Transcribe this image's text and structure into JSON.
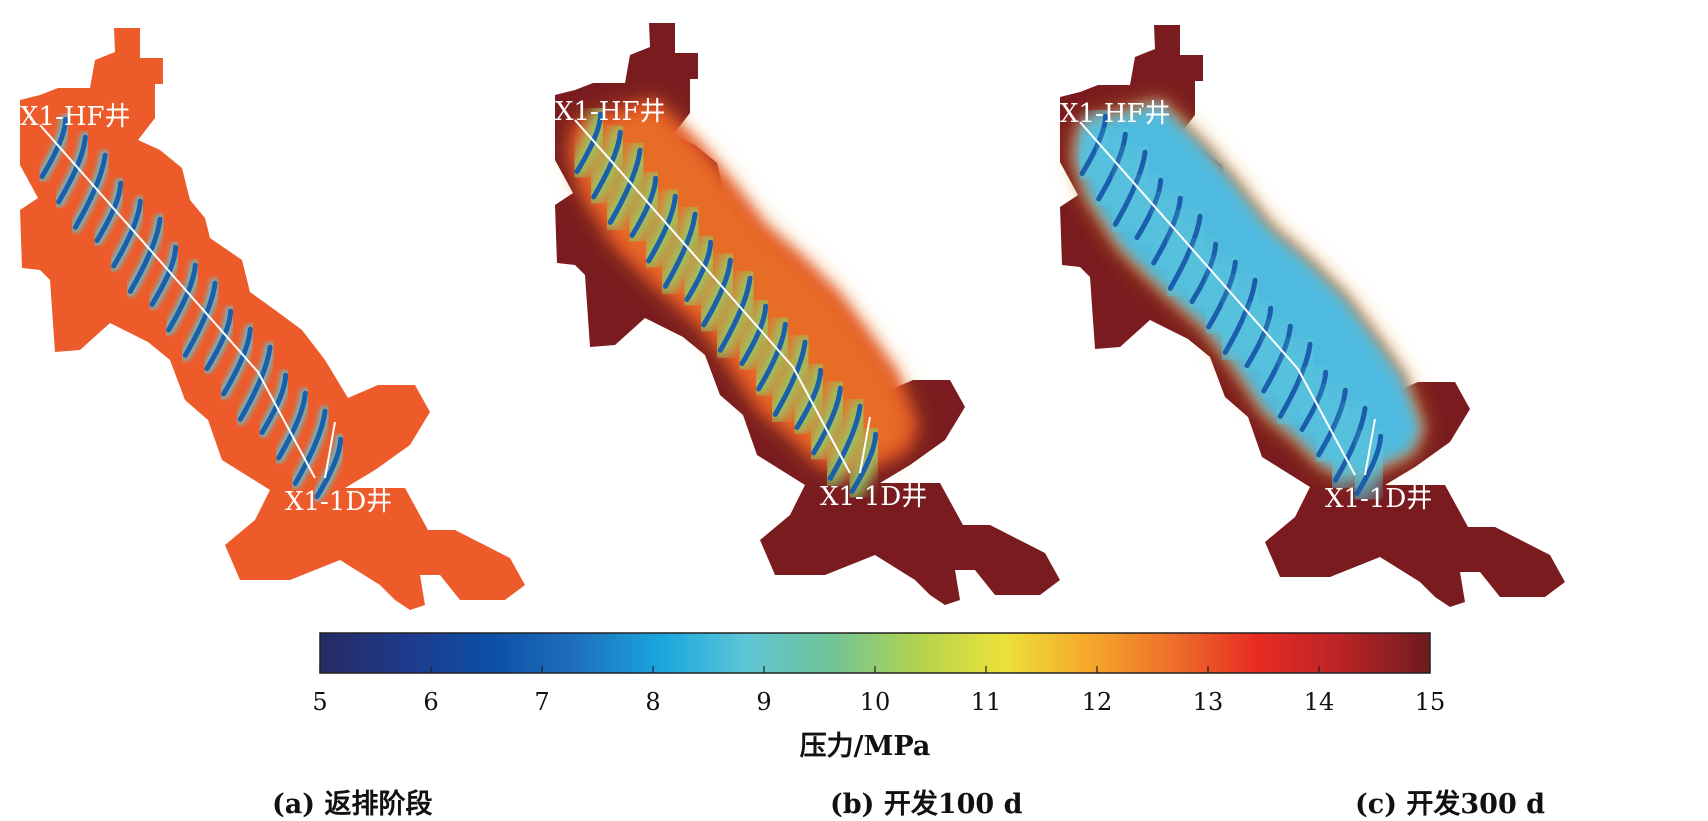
{
  "panels": [
    {
      "id": "a",
      "caption": "(a) 返排阶段",
      "well_top_label": "X1-HF井",
      "well_bottom_label": "X1-1D井",
      "background_color": "#ee5b2a",
      "inner_color": "#f06a36",
      "fracture_core_color": "#1b5eab",
      "fracture_halo_color": "#5cc8d6",
      "diffusion": "narrow"
    },
    {
      "id": "b",
      "caption": "(b) 开发100 d",
      "well_top_label": "X1-HF井",
      "well_bottom_label": "X1-1D井",
      "background_color": "#7a1c1f",
      "inner_color": "#dd2a22",
      "fracture_core_color": "#1b5eab",
      "fracture_halo_color": "#8fd16b",
      "diffusion": "medium"
    },
    {
      "id": "c",
      "caption": "(c) 开发300 d",
      "well_top_label": "X1-HF井",
      "well_bottom_label": "X1-1D井",
      "background_color": "#7a1c1f",
      "inner_color": "#dd2a22",
      "fracture_core_color": "#1b5eab",
      "fracture_halo_color": "#59c3dc",
      "diffusion": "wide"
    }
  ],
  "colorbar": {
    "label": "压力/MPa",
    "ticks": [
      "5",
      "6",
      "7",
      "8",
      "9",
      "10",
      "11",
      "12",
      "13",
      "14",
      "15"
    ],
    "min": 5,
    "max": 15,
    "colors": [
      "#252b63",
      "#1e3a8c",
      "#0d4fa6",
      "#1f6fbd",
      "#19a7de",
      "#5ec6d5",
      "#71c497",
      "#b1d34f",
      "#ece13a",
      "#f6a82a",
      "#ee6e2a",
      "#e72a24",
      "#b82326",
      "#6e1b1f"
    ]
  }
}
